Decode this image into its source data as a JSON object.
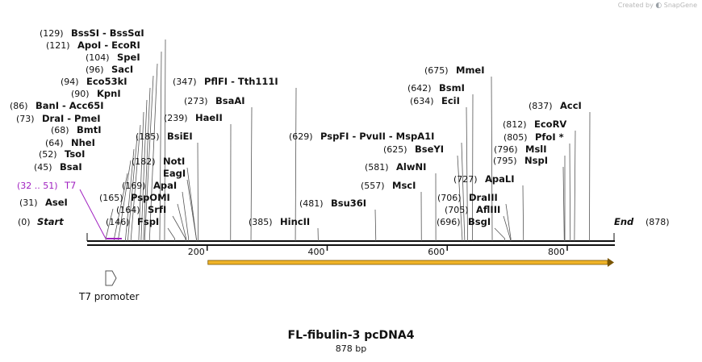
{
  "brand": {
    "prefix": "Created by",
    "name": "SnapGene"
  },
  "map": {
    "title": "FL-fibulin-3 pcDNA4",
    "length_label": "878 bp",
    "length": 878,
    "start_label": "Start",
    "end_label": "End",
    "start_pos": "(0)",
    "end_pos": "(878)",
    "ticks": [
      {
        "value": 200,
        "label": "200"
      },
      {
        "value": 400,
        "label": "400"
      },
      {
        "value": 600,
        "label": "600"
      },
      {
        "value": 800,
        "label": "800"
      }
    ],
    "primer": {
      "label": "T7",
      "pos": "(32 .. 51)",
      "start": 32,
      "end": 51,
      "color": "#a020c0"
    },
    "promoter": {
      "label": "T7 promoter"
    },
    "orf": {
      "start": 200,
      "end": 878,
      "color": "#f0b429"
    },
    "sites": [
      {
        "pos": "(129)",
        "name": "BssSI  -  BssSαI",
        "cut": 129
      },
      {
        "pos": "(121)",
        "name": "ApoI  -  EcoRI",
        "cut": 121
      },
      {
        "pos": "(104)",
        "name": "SpeI",
        "cut": 104
      },
      {
        "pos": "(96)",
        "name": "SacI",
        "cut": 96
      },
      {
        "pos": "(94)",
        "name": "Eco53kI",
        "cut": 94
      },
      {
        "pos": "(90)",
        "name": "KpnI",
        "cut": 90
      },
      {
        "pos": "(86)",
        "name": "BanI  -  Acc65I",
        "cut": 86
      },
      {
        "pos": "(73)",
        "name": "DraI  -  PmeI",
        "cut": 73
      },
      {
        "pos": "(68)",
        "name": "BmtI",
        "cut": 68
      },
      {
        "pos": "(64)",
        "name": "NheI",
        "cut": 64
      },
      {
        "pos": "(52)",
        "name": "TsoI",
        "cut": 52
      },
      {
        "pos": "(45)",
        "name": "BsaI",
        "cut": 45
      },
      {
        "pos": "(31)",
        "name": "AseI",
        "cut": 31
      },
      {
        "pos": "(347)",
        "name": "PflFI  -  Tth111I",
        "cut": 347
      },
      {
        "pos": "(273)",
        "name": "BsaAI",
        "cut": 273
      },
      {
        "pos": "(239)",
        "name": "HaeII",
        "cut": 239
      },
      {
        "pos": "(185)",
        "name": "BsiEI",
        "cut": 185
      },
      {
        "pos": "(182)",
        "name": "NotI",
        "cut": 182
      },
      {
        "pos": "",
        "name": "EagI",
        "cut": 182
      },
      {
        "pos": "(169)",
        "name": "ApaI",
        "cut": 169
      },
      {
        "pos": "(165)",
        "name": "PspOMI",
        "cut": 165
      },
      {
        "pos": "(164)",
        "name": "SrfI",
        "cut": 164
      },
      {
        "pos": "(146)",
        "name": "FspI",
        "cut": 146
      },
      {
        "pos": "(385)",
        "name": "HincII",
        "cut": 385
      },
      {
        "pos": "(481)",
        "name": "Bsu36I",
        "cut": 481
      },
      {
        "pos": "(675)",
        "name": "MmeI",
        "cut": 675
      },
      {
        "pos": "(642)",
        "name": "BsmI",
        "cut": 642
      },
      {
        "pos": "(634)",
        "name": "EciI",
        "cut": 634
      },
      {
        "pos": "(629)",
        "name": "PspFI  -  PvuII  -  MspA1I",
        "cut": 629
      },
      {
        "pos": "(625)",
        "name": "BseYI",
        "cut": 625
      },
      {
        "pos": "(581)",
        "name": "AlwNI",
        "cut": 581
      },
      {
        "pos": "(557)",
        "name": "MscI",
        "cut": 557
      },
      {
        "pos": "(727)",
        "name": "ApaLI",
        "cut": 727
      },
      {
        "pos": "(706)",
        "name": "DraIII",
        "cut": 706
      },
      {
        "pos": "(705)",
        "name": "AflIII",
        "cut": 705
      },
      {
        "pos": "(696)",
        "name": "BsgI",
        "cut": 696
      },
      {
        "pos": "(837)",
        "name": "AccI",
        "cut": 837
      },
      {
        "pos": "(812)",
        "name": "EcoRV",
        "cut": 812
      },
      {
        "pos": "(805)",
        "name": "PfoI *",
        "cut": 805
      },
      {
        "pos": "(796)",
        "name": "MslI",
        "cut": 796
      },
      {
        "pos": "(795)",
        "name": "NspI",
        "cut": 795
      }
    ]
  }
}
